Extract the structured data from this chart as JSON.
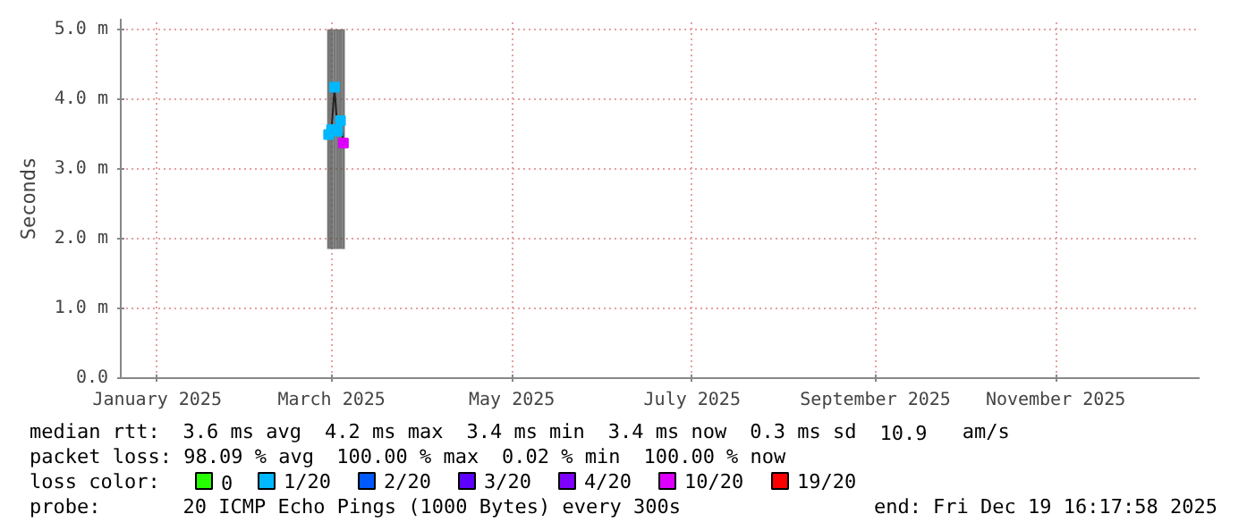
{
  "chart_data": {
    "type": "scatter",
    "ylabel": "Seconds",
    "marker": "square",
    "grid": true,
    "legend": "bottom",
    "legend_title": "loss color:",
    "x": [
      "2025-02-28",
      "2025-03-01",
      "2025-03-02",
      "2025-03-03",
      "2025-03-04",
      "2025-03-05"
    ],
    "xlim": [
      "2024-12-19T16:17",
      "2025-12-19T16:17"
    ],
    "xticks": [
      {
        "value": "2025-01-01",
        "label": "January 2025"
      },
      {
        "value": "2025-03-01",
        "label": "March 2025"
      },
      {
        "value": "2025-05-01",
        "label": "May 2025"
      },
      {
        "value": "2025-07-01",
        "label": "July 2025"
      },
      {
        "value": "2025-09-01",
        "label": "September 2025"
      },
      {
        "value": "2025-11-01",
        "label": "November 2025"
      }
    ],
    "ylim": [
      0,
      5.15
    ],
    "yticks": [
      {
        "value": 0,
        "label": "0.0"
      },
      {
        "value": 1,
        "label": "1.0 m"
      },
      {
        "value": 2,
        "label": "2.0 m"
      },
      {
        "value": 3,
        "label": "3.0 m"
      },
      {
        "value": 4,
        "label": "4.0 m"
      },
      {
        "value": 5,
        "label": "5.0 m"
      }
    ],
    "series": [
      {
        "type": "line",
        "marker": "none",
        "color": "#222222",
        "values": [
          3.49,
          3.56,
          4.17,
          3.54,
          3.69,
          3.37
        ],
        "lower": [
          1.85,
          1.85,
          1.85,
          1.85,
          1.85,
          1.85
        ],
        "upper": [
          5.0,
          5.0,
          5.0,
          5.0,
          5.0,
          5.0
        ]
      },
      {
        "name": "0",
        "color": "#26ff00",
        "values": [
          null,
          null,
          null,
          null,
          null,
          null
        ]
      },
      {
        "name": "1/20",
        "color": "#00b8ff",
        "values": [
          3.49,
          3.56,
          4.17,
          3.54,
          3.69,
          null
        ]
      },
      {
        "name": "2/20",
        "color": "#0059ff",
        "values": [
          null,
          null,
          null,
          null,
          null,
          null
        ]
      },
      {
        "name": "3/20",
        "color": "#5e00ff",
        "values": [
          null,
          null,
          null,
          null,
          null,
          null
        ]
      },
      {
        "name": "4/20",
        "color": "#7e00ff",
        "values": [
          null,
          null,
          null,
          null,
          null,
          null
        ]
      },
      {
        "name": "10/20",
        "color": "#dd00ff",
        "values": [
          null,
          null,
          null,
          null,
          null,
          3.37
        ]
      },
      {
        "name": "19/20",
        "color": "#ff0000",
        "values": [
          null,
          null,
          null,
          null,
          null,
          null
        ]
      }
    ],
    "annotations": [
      "median rtt:  3.6 ms avg  4.2 ms max  3.4 ms min  3.4 ms now  0.3 ms sd  10.9   am/s",
      "packet loss: 98.09 % avg  100.00 % max  0.02 % min  100.00 % now",
      "probe:       20 ICMP Echo Pings (1000 Bytes) every 300s",
      "end: Fri Dec 19 16:17:58 2025"
    ]
  }
}
